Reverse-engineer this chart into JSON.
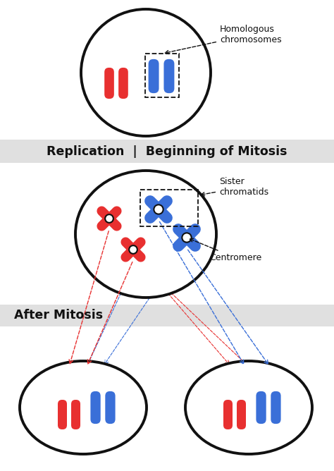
{
  "bg_color": "#ffffff",
  "gray_band_color": "#e0e0e0",
  "red_color": "#e83030",
  "blue_color": "#3a6fd8",
  "black_color": "#111111",
  "label_replication": "Replication  |  Beginning of Mitosis",
  "label_after": "After Mitosis",
  "label_homologous": "Homologous\nchromosomes",
  "label_sister": "Sister\nchromatids",
  "label_centromere": "Centromere"
}
